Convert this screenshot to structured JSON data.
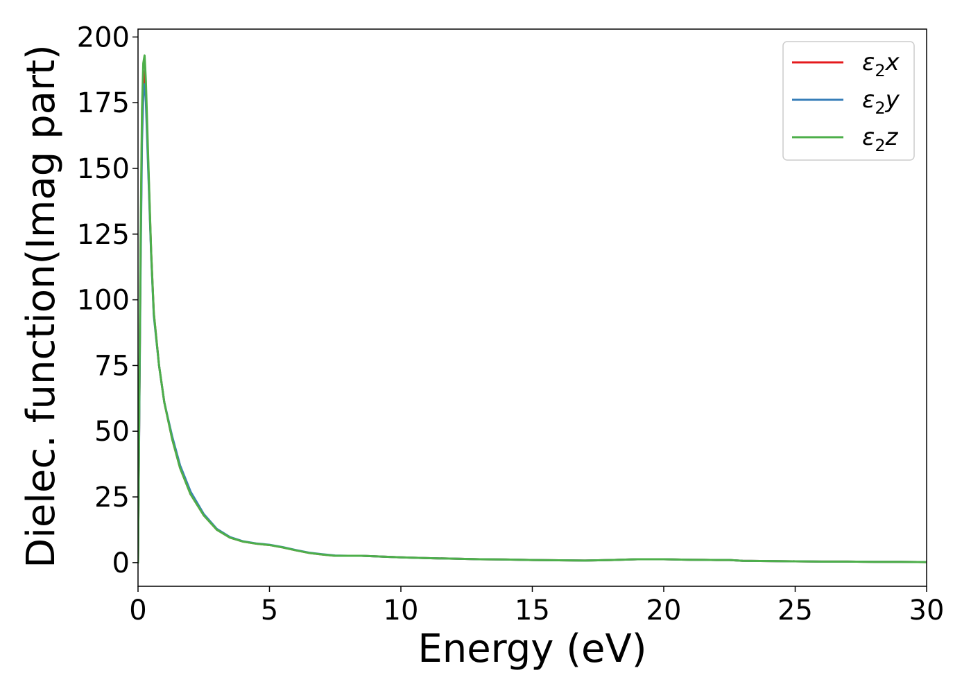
{
  "chart_data": {
    "type": "line",
    "xlabel": "Energy (eV)",
    "ylabel": "Dielec. function(Imag part)",
    "xlim": [
      0,
      30
    ],
    "ylim": [
      -9,
      203
    ],
    "xticks": [
      0,
      5,
      10,
      15,
      20,
      25,
      30
    ],
    "yticks": [
      0,
      25,
      50,
      75,
      100,
      125,
      150,
      175,
      200
    ],
    "xtick_labels": [
      "0",
      "5",
      "10",
      "15",
      "20",
      "25",
      "30"
    ],
    "ytick_labels": [
      "0",
      "25",
      "50",
      "75",
      "100",
      "125",
      "150",
      "175",
      "200"
    ],
    "grid": false,
    "legend_position": "top-right",
    "series": [
      {
        "name": "ε₂x",
        "name_parts": {
          "base": "ε",
          "sub": "2",
          "axis": "x"
        },
        "color": "#e41a1c",
        "x": [
          0,
          0.05,
          0.1,
          0.15,
          0.2,
          0.25,
          0.3,
          0.4,
          0.5,
          0.6,
          0.8,
          1.0,
          1.3,
          1.6,
          2.0,
          2.5,
          3.0,
          3.5,
          4.0,
          4.5,
          5.0,
          5.5,
          6.0,
          6.5,
          7.0,
          7.5,
          8.0,
          8.5,
          9.0,
          10.0,
          11.0,
          12.0,
          13.0,
          14.0,
          15.0,
          16.0,
          17.0,
          18.0,
          19.0,
          20.0,
          21.0,
          22.0,
          22.5,
          23.0,
          24.0,
          25.0,
          26.0,
          27.0,
          28.0,
          29.0,
          30.0
        ],
        "y": [
          0,
          60,
          120,
          165,
          183,
          187,
          178,
          148,
          118,
          95,
          75,
          61,
          47,
          36,
          26,
          18,
          12.5,
          9.5,
          8.0,
          7.2,
          6.7,
          5.8,
          4.7,
          3.7,
          3.1,
          2.6,
          2.6,
          2.6,
          2.4,
          2.0,
          1.7,
          1.5,
          1.3,
          1.2,
          1.0,
          0.9,
          0.8,
          1.0,
          1.3,
          1.3,
          1.1,
          1.0,
          1.0,
          0.7,
          0.6,
          0.5,
          0.4,
          0.4,
          0.3,
          0.3,
          0.2
        ]
      },
      {
        "name": "ε₂y",
        "name_parts": {
          "base": "ε",
          "sub": "2",
          "axis": "y"
        },
        "color": "#377eb8",
        "x": [
          0,
          0.05,
          0.1,
          0.15,
          0.2,
          0.25,
          0.3,
          0.4,
          0.5,
          0.6,
          0.8,
          1.0,
          1.3,
          1.6,
          2.0,
          2.5,
          3.0,
          3.5,
          4.0,
          4.5,
          5.0,
          5.5,
          6.0,
          6.5,
          7.0,
          7.5,
          8.0,
          8.5,
          9.0,
          10.0,
          11.0,
          12.0,
          13.0,
          14.0,
          15.0,
          16.0,
          17.0,
          18.0,
          19.0,
          20.0,
          21.0,
          22.0,
          22.5,
          23.0,
          24.0,
          25.0,
          26.0,
          27.0,
          28.0,
          29.0,
          30.0
        ],
        "y": [
          0,
          58,
          115,
          160,
          178,
          182,
          175,
          146,
          117,
          94,
          75,
          61,
          48,
          37,
          27,
          18.5,
          12.8,
          9.7,
          8.1,
          7.3,
          6.8,
          5.9,
          4.8,
          3.8,
          3.2,
          2.7,
          2.6,
          2.6,
          2.4,
          2.0,
          1.7,
          1.5,
          1.3,
          1.2,
          1.0,
          0.9,
          0.8,
          1.0,
          1.3,
          1.3,
          1.1,
          1.0,
          1.0,
          0.7,
          0.6,
          0.5,
          0.4,
          0.4,
          0.3,
          0.3,
          0.2
        ]
      },
      {
        "name": "ε₂z",
        "name_parts": {
          "base": "ε",
          "sub": "2",
          "axis": "z"
        },
        "color": "#4daf4a",
        "x": [
          0,
          0.05,
          0.1,
          0.15,
          0.2,
          0.25,
          0.3,
          0.4,
          0.5,
          0.6,
          0.8,
          1.0,
          1.3,
          1.6,
          2.0,
          2.5,
          3.0,
          3.5,
          4.0,
          4.5,
          5.0,
          5.5,
          6.0,
          6.5,
          7.0,
          7.5,
          8.0,
          8.5,
          9.0,
          10.0,
          11.0,
          12.0,
          13.0,
          14.0,
          15.0,
          16.0,
          17.0,
          18.0,
          19.0,
          20.0,
          21.0,
          22.0,
          22.5,
          23.0,
          24.0,
          25.0,
          26.0,
          27.0,
          28.0,
          29.0,
          30.0
        ],
        "y": [
          0,
          62,
          125,
          172,
          190,
          193,
          183,
          150,
          118,
          95,
          75,
          61,
          47,
          36,
          26,
          18,
          12.5,
          9.5,
          8.0,
          7.2,
          6.7,
          5.8,
          4.7,
          3.7,
          3.1,
          2.6,
          2.6,
          2.6,
          2.4,
          2.0,
          1.7,
          1.5,
          1.3,
          1.2,
          1.0,
          0.9,
          0.8,
          1.0,
          1.3,
          1.3,
          1.1,
          1.0,
          1.0,
          0.7,
          0.6,
          0.5,
          0.4,
          0.4,
          0.3,
          0.3,
          0.2
        ]
      }
    ]
  }
}
